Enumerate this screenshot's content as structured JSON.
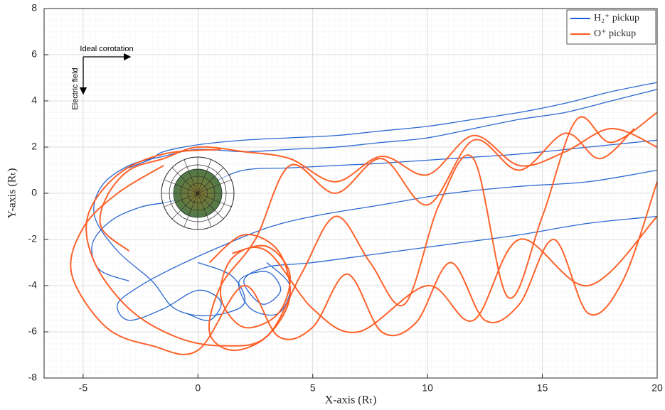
{
  "chart_data": {
    "type": "line",
    "xlabel": "X-axis (Rₜ)",
    "ylabel": "Y-axis (Rₜ)",
    "annotations": [
      "Ideal corotation",
      "Electric field"
    ],
    "xlim": [
      -6.7,
      20
    ],
    "xticks": [
      -5,
      0,
      5,
      10,
      15,
      20
    ],
    "ylim": [
      -8,
      8
    ],
    "yticks": [
      -8,
      -6,
      -4,
      -2,
      0,
      2,
      4,
      6,
      8
    ],
    "grid": true,
    "legend": "upper right",
    "series": [
      {
        "name": "H₂⁺ pickup",
        "color": "#1f5fd0",
        "tracks": [
          {
            "x": [
              20,
              18,
              16,
              14,
              12,
              10,
              8,
              6,
              4,
              2,
              0,
              -1.5,
              -2,
              -3
            ],
            "y": [
              4.8,
              4.4,
              3.9,
              3.5,
              3.2,
              2.9,
              2.7,
              2.5,
              2.4,
              2.3,
              2.1,
              1.8,
              1.5,
              1.1
            ]
          },
          {
            "x": [
              20,
              18,
              16,
              14,
              12,
              10,
              8,
              6,
              4,
              2,
              0,
              -1.5,
              -3,
              -4.2,
              -4.5,
              -3.5,
              -2,
              -1,
              0.5,
              2,
              1.5,
              0
            ],
            "y": [
              4.5,
              4.0,
              3.5,
              3.2,
              2.8,
              2.4,
              2.2,
              2,
              1.9,
              1.8,
              1.9,
              1.6,
              1.2,
              0.3,
              -1,
              -2.5,
              -3.8,
              -5,
              -5.3,
              -4.8,
              -3.6,
              -3
            ]
          },
          {
            "x": [
              20,
              17,
              14,
              11,
              8,
              5,
              3,
              1,
              -1,
              -2.5,
              -3.5,
              -3,
              -1.5,
              0,
              1,
              0.5,
              -0.5
            ],
            "y": [
              1,
              0.5,
              0.3,
              0,
              -0.5,
              -1,
              -1.5,
              -2.3,
              -3.2,
              -4,
              -4.8,
              -5.5,
              -5,
              -4.2,
              -4.7,
              -5.5,
              -5.2
            ]
          },
          {
            "x": [
              20,
              17,
              14,
              11,
              8,
              5,
              3,
              2,
              2.8,
              3.6,
              3,
              1.8,
              2.3,
              3.5,
              4,
              3
            ],
            "y": [
              -1,
              -1.3,
              -1.8,
              -2.2,
              -2.6,
              -3,
              -3.2,
              -3.8,
              -4.8,
              -4.2,
              -3.4,
              -3.8,
              -5,
              -5.2,
              -4,
              -3
            ]
          },
          {
            "x": [
              20,
              17,
              14,
              11,
              8,
              6,
              4,
              2,
              0.5,
              -1,
              -2.5,
              -3.8,
              -4.6,
              -4.3,
              -3
            ],
            "y": [
              2.3,
              2.0,
              1.7,
              1.5,
              1.3,
              1.2,
              1.1,
              1.0,
              0.4,
              -0.3,
              -0.6,
              -1.2,
              -2.2,
              -3.3,
              -3.8
            ]
          }
        ]
      },
      {
        "name": "O⁺ pickup",
        "color": "#ff5a1f",
        "tracks": [
          {
            "x": [
              20,
              18,
              16.5,
              15,
              13.5,
              12,
              10.5,
              9,
              7.5,
              6,
              4.5,
              3,
              1,
              -1,
              -3,
              -4.5,
              -4.8,
              -3.5,
              -1.5,
              1
            ],
            "y": [
              3.5,
              2.2,
              3.2,
              -1,
              -4.5,
              1.5,
              -0.5,
              -4.8,
              -3,
              -1,
              -3.5,
              -6.2,
              -6.6,
              -6.2,
              -5,
              -3,
              -1,
              0.8,
              1.7,
              1.9
            ]
          },
          {
            "x": [
              20,
              18.5,
              17,
              15.5,
              14,
              12.5,
              11,
              9.5,
              8,
              6.5,
              5,
              3.5,
              2,
              0,
              -2,
              -4,
              -5.5,
              -5,
              -3.5,
              -1.5
            ],
            "y": [
              0.5,
              -3.8,
              -5.2,
              -2,
              -4.8,
              -5.5,
              -3,
              -5.6,
              -6,
              -3.5,
              -5.8,
              -6.2,
              -4,
              -6.8,
              -6.6,
              -5.8,
              -3.5,
              -1.5,
              0,
              1.2
            ]
          },
          {
            "x": [
              19,
              17.5,
              16,
              14,
              12,
              10,
              8,
              6,
              4,
              2.5,
              1,
              0.5,
              1.5,
              3,
              4,
              3.5,
              2,
              0.5
            ],
            "y": [
              2.8,
              1.5,
              2.6,
              1,
              2.3,
              -0.5,
              1.5,
              0,
              1.2,
              -2,
              -4,
              -6,
              -6.8,
              -6.2,
              -4.5,
              -2.5,
              -1.8,
              -3
            ]
          },
          {
            "x": [
              20,
              17,
              14,
              12,
              10,
              7,
              5,
              3,
              1.5,
              1,
              2,
              3.5,
              4,
              3,
              1.5
            ],
            "y": [
              -1,
              -4,
              -2,
              -5.5,
              -4,
              -6,
              -5,
              -2.5,
              -2.8,
              -4.5,
              -5.8,
              -5.2,
              -3.5,
              -2.3,
              -2.6
            ]
          },
          {
            "x": [
              20,
              18,
              16,
              14,
              12,
              10,
              8,
              6,
              4,
              2,
              0,
              -1.5,
              -3,
              -4,
              -4.2,
              -3
            ],
            "y": [
              2,
              2.8,
              1.8,
              1.2,
              2.5,
              0.8,
              1.6,
              0.5,
              1.5,
              1.8,
              2,
              1.5,
              1,
              -0.2,
              -1.5,
              -2.5
            ]
          }
        ]
      }
    ]
  }
}
